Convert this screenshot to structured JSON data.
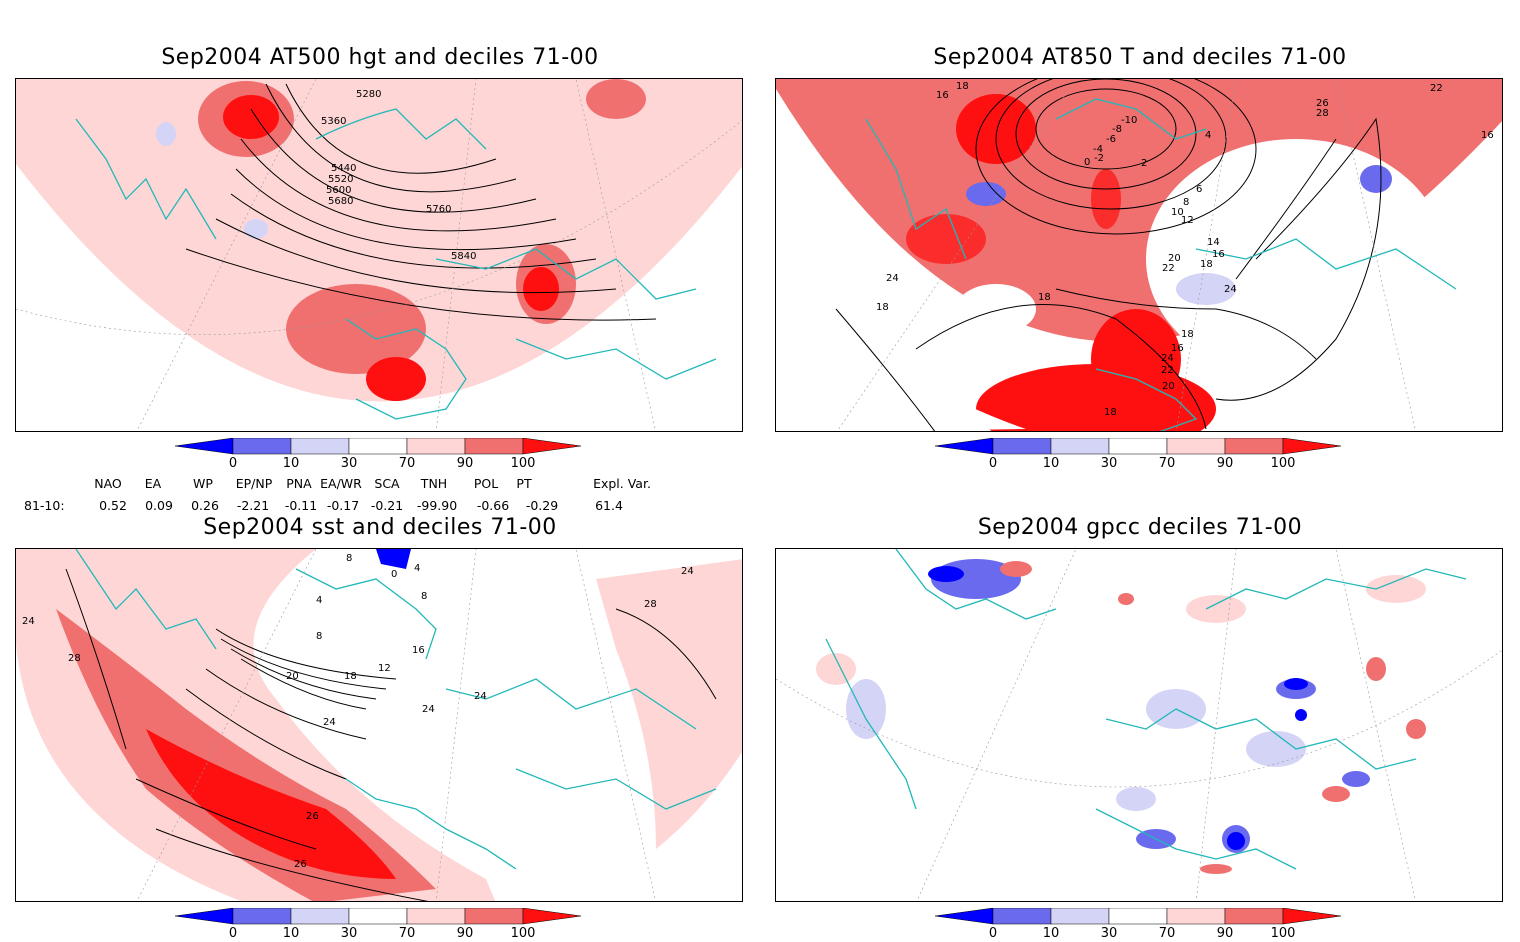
{
  "panels": [
    {
      "id": "hgt500",
      "title": "Sep2004 AT500 hgt and deciles 71-00",
      "contour_labels": [
        "5280",
        "5360",
        "5440",
        "5520",
        "5600",
        "5680",
        "5760",
        "5840"
      ]
    },
    {
      "id": "t850",
      "title": "Sep2004 AT850 T and deciles 71-00",
      "contour_labels": [
        "18",
        "16",
        "16",
        "-10",
        "-8",
        "-6",
        "-4",
        "-2",
        "0",
        "4",
        "2",
        "6",
        "8",
        "10",
        "12",
        "14",
        "16",
        "18",
        "20",
        "22",
        "24",
        "26",
        "28",
        "22",
        "24",
        "18",
        "18",
        "18",
        "16",
        "24",
        "22",
        "20",
        "18",
        "26"
      ]
    },
    {
      "id": "sst",
      "title": "Sep2004 sst and deciles 71-00",
      "contour_labels": [
        "24",
        "28",
        "28",
        "24",
        "8",
        "4",
        "0",
        "4",
        "8",
        "12",
        "16",
        "8",
        "20",
        "18",
        "24",
        "24",
        "24",
        "26",
        "26"
      ]
    },
    {
      "id": "gpcc",
      "title": "Sep2004 gpcc deciles 71-00",
      "contour_labels": []
    }
  ],
  "colorbar": {
    "ticks": [
      "0",
      "10",
      "30",
      "70",
      "90",
      "100"
    ],
    "colors": {
      "below_0": "#0000ff",
      "c0_10": "#6a6aee",
      "c10_30": "#d4d4f6",
      "c30_70": "#ffffff",
      "c70_90": "#ffd6d6",
      "c90_100": "#f07070",
      "above_100": "#ff1010"
    }
  },
  "indices": {
    "period": "81-10:",
    "headers": [
      "NAO",
      "EA",
      "WP",
      "EP/NP",
      "PNA",
      "EA/WR",
      "SCA",
      "TNH",
      "POL",
      "PT",
      "Expl. Var."
    ],
    "values": [
      "0.52",
      "0.09",
      "0.26",
      "-2.21",
      "-0.11",
      "-0.17",
      "-0.21",
      "-99.90",
      "-0.66",
      "-0.29",
      "61.4"
    ]
  },
  "colors": {
    "coast": "#22b8b8",
    "grid": "#999999",
    "contour": "#000000"
  }
}
